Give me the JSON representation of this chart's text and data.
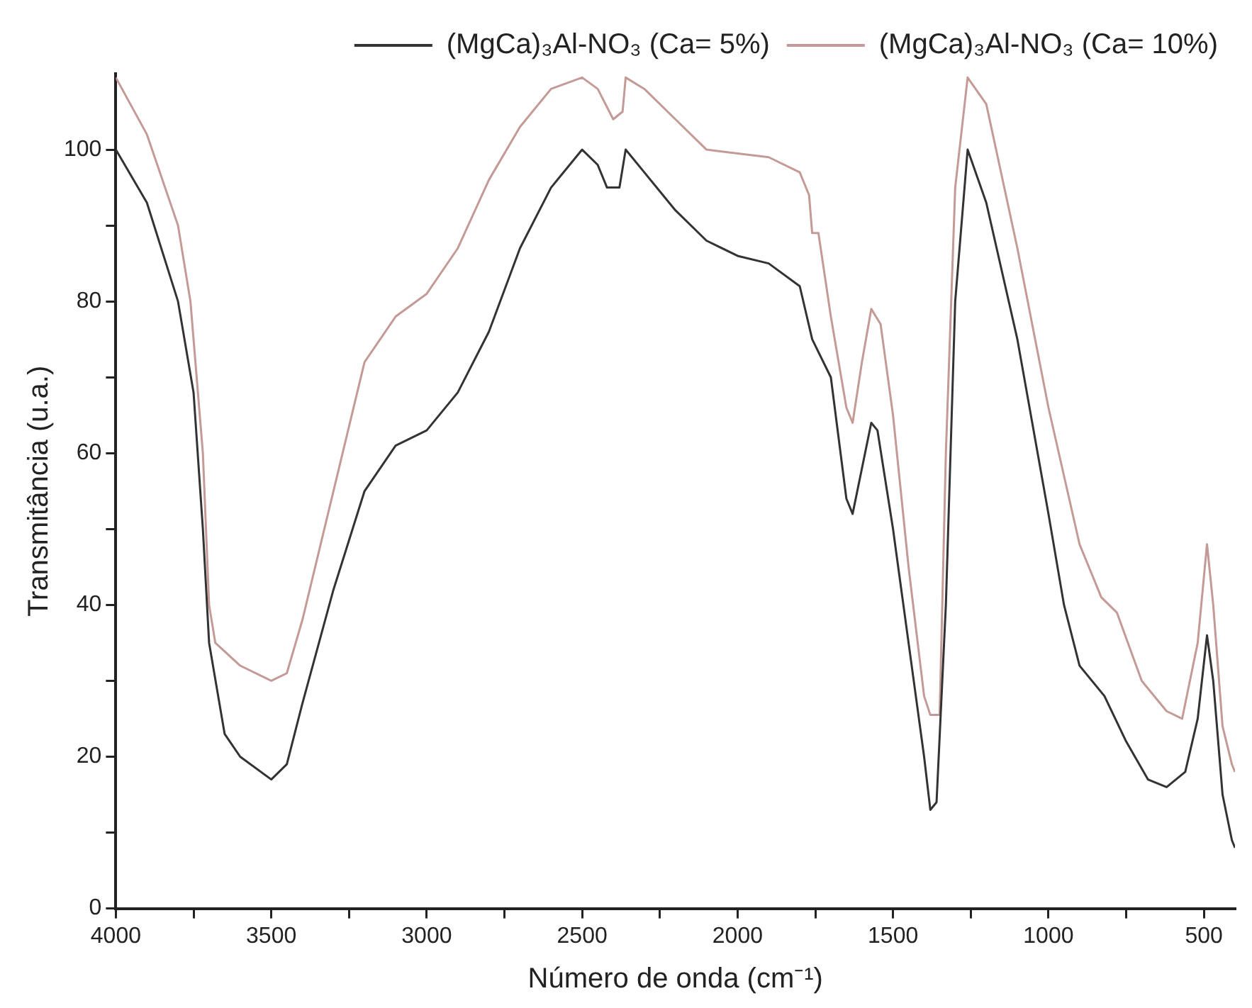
{
  "chart_data": {
    "type": "line",
    "xlabel": "Número de onda (cm⁻¹)",
    "ylabel": "Transmitância (u.a.)",
    "xlim": [
      4000,
      400
    ],
    "ylim": [
      0,
      110
    ],
    "xticks": [
      4000,
      {
        "value": 3750,
        "label": null
      },
      3500,
      {
        "value": 3250,
        "label": null
      },
      3000,
      {
        "value": 2750,
        "label": null
      },
      2500,
      {
        "value": 2250,
        "label": null
      },
      2000,
      {
        "value": 1750,
        "label": null
      },
      1500,
      {
        "value": 1250,
        "label": null
      },
      1000,
      {
        "value": 750,
        "label": null
      },
      500
    ],
    "yticks": [
      0,
      {
        "value": 10,
        "label": null
      },
      20,
      {
        "value": 30,
        "label": null
      },
      40,
      {
        "value": 50,
        "label": null
      },
      60,
      {
        "value": 70,
        "label": null
      },
      80,
      {
        "value": 90,
        "label": null
      },
      100
    ],
    "grid": false,
    "legend": "top right",
    "marker": "none",
    "line_style": "solid",
    "series": [
      {
        "name": "(MgCa)₃Al-NO₃ (Ca= 5%)",
        "color": "#333333",
        "x": [
          4000,
          3900,
          3800,
          3750,
          3720,
          3700,
          3650,
          3600,
          3500,
          3450,
          3400,
          3300,
          3200,
          3100,
          3000,
          2900,
          2800,
          2700,
          2600,
          2500,
          2450,
          2420,
          2380,
          2360,
          2300,
          2200,
          2100,
          2000,
          1900,
          1800,
          1760,
          1700,
          1650,
          1630,
          1600,
          1570,
          1550,
          1500,
          1450,
          1400,
          1380,
          1360,
          1330,
          1300,
          1260,
          1200,
          1100,
          1000,
          950,
          900,
          820,
          750,
          680,
          620,
          560,
          520,
          490,
          470,
          440,
          410,
          400
        ],
        "values": [
          100,
          93,
          80,
          68,
          50,
          35,
          23,
          20,
          17,
          19,
          27,
          42,
          55,
          61,
          63,
          68,
          76,
          87,
          95,
          100,
          98,
          95,
          95,
          100,
          97,
          92,
          88,
          86,
          85,
          82,
          75,
          70,
          54,
          52,
          58,
          64,
          63,
          50,
          35,
          20,
          13,
          14,
          40,
          80,
          100,
          93,
          75,
          52,
          40,
          32,
          28,
          22,
          17,
          16,
          18,
          25,
          36,
          30,
          15,
          9,
          8
        ]
      },
      {
        "name": "(MgCa)₃Al-NO₃ (Ca= 10%)",
        "color": "#c49a96",
        "x": [
          4000,
          3900,
          3800,
          3760,
          3720,
          3700,
          3680,
          3600,
          3500,
          3450,
          3400,
          3300,
          3200,
          3100,
          3000,
          2900,
          2800,
          2700,
          2600,
          2500,
          2450,
          2400,
          2370,
          2360,
          2300,
          2200,
          2100,
          2000,
          1900,
          1800,
          1770,
          1760,
          1740,
          1700,
          1650,
          1630,
          1600,
          1570,
          1540,
          1500,
          1450,
          1400,
          1380,
          1350,
          1330,
          1300,
          1260,
          1200,
          1100,
          1000,
          900,
          830,
          780,
          700,
          620,
          570,
          520,
          490,
          470,
          440,
          410,
          400
        ],
        "values": [
          109.5,
          102,
          90,
          80,
          60,
          40,
          35,
          32,
          30,
          31,
          38,
          55,
          72,
          78,
          81,
          87,
          96,
          103,
          108,
          109.5,
          108,
          104,
          105,
          109.5,
          108,
          104,
          100,
          99.5,
          99,
          97,
          94,
          89,
          89,
          78,
          66,
          64,
          72,
          79,
          77,
          65,
          45,
          28,
          25.5,
          25.5,
          60,
          95,
          109.5,
          106,
          87,
          66,
          48,
          41,
          39,
          30,
          26,
          25,
          35,
          48,
          40,
          24,
          19,
          18
        ]
      }
    ]
  }
}
